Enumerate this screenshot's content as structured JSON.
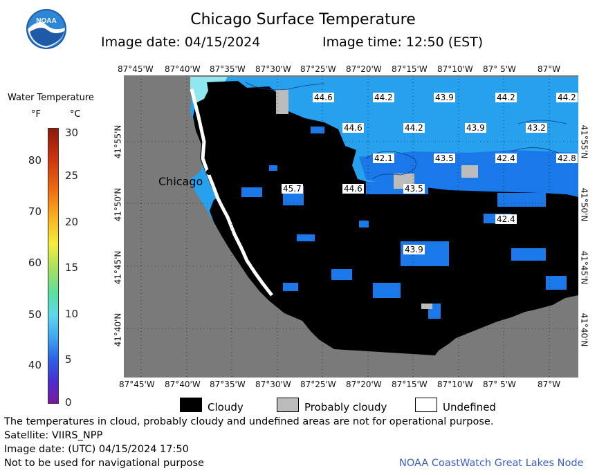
{
  "header": {
    "title": "Chicago Surface Temperature",
    "image_date": "Image date: 04/15/2024",
    "image_time": "Image time: 12:50 (EST)",
    "logo_text": "NOAA"
  },
  "legend": {
    "title": "Water Temperature",
    "unit_f": "°F",
    "unit_c": "°C",
    "ticks_f": [
      "80",
      "70",
      "60",
      "50",
      "40"
    ],
    "ticks_c": [
      "30",
      "25",
      "20",
      "15",
      "10",
      "5",
      "0"
    ]
  },
  "map": {
    "lon_labels": [
      "87°45'W",
      "87°40'W",
      "87°35'W",
      "87°30'W",
      "87°25'W",
      "87°20'W",
      "87°15'W",
      "87°10'W",
      "87° 5'W",
      "87°W"
    ],
    "lat_labels": [
      "41°55'N",
      "41°50'N",
      "41°45'N",
      "41°40'N"
    ],
    "city_label": "Chicago",
    "temperature_values": [
      "44.6",
      "44.2",
      "43.9",
      "44.2",
      "44.2",
      "44.6",
      "44.2",
      "43.9",
      "43.2",
      "42.1",
      "43.5",
      "42.4",
      "42.8",
      "45.7",
      "44.6",
      "43.5",
      "42.4",
      "43.9"
    ],
    "colors": {
      "land": "#7a7a7a",
      "cloudy": "#000000",
      "probably_cloudy": "#bcbcbc",
      "water_warm": "#27a0ee",
      "water_cool": "#1a78e8",
      "shore_cold": "#8ee8ee"
    }
  },
  "key": {
    "cloudy": "Cloudy",
    "probably_cloudy": "Probably cloudy",
    "undefined": "Undefined"
  },
  "footer": {
    "disclaimer": "The temperatures in cloud, probably cloudy and undefined areas are not for operational purpose.",
    "satellite": "Satellite: VIIRS_NPP",
    "utc_date": "Image date: (UTC) 04/15/2024  17:50",
    "nav": "Not to be used for navigational purpose",
    "node": "NOAA CoastWatch Great Lakes Node"
  }
}
